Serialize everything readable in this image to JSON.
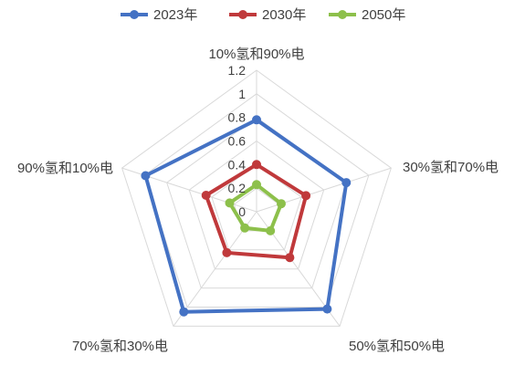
{
  "chart_data": {
    "type": "radar",
    "title": "",
    "categories": [
      "10%氢和90%电",
      "30%氢和70%电",
      "50%氢和50%电",
      "70%氢和30%电",
      "90%氢和10%电"
    ],
    "rlim": [
      0,
      1.2
    ],
    "ticks": [
      "0",
      "0.2",
      "0.4",
      "0.6",
      "0.8",
      "1",
      "1.2"
    ],
    "grid": true,
    "legend_position": "top",
    "series": [
      {
        "name": "2023年",
        "color": "#4472C4",
        "values": [
          0.78,
          0.8,
          1.02,
          1.05,
          0.99
        ]
      },
      {
        "name": "2030年",
        "color": "#C0393B",
        "values": [
          0.4,
          0.44,
          0.48,
          0.43,
          0.45
        ]
      },
      {
        "name": "2050年",
        "color": "#8DC04B",
        "values": [
          0.23,
          0.22,
          0.2,
          0.17,
          0.24
        ]
      }
    ]
  }
}
